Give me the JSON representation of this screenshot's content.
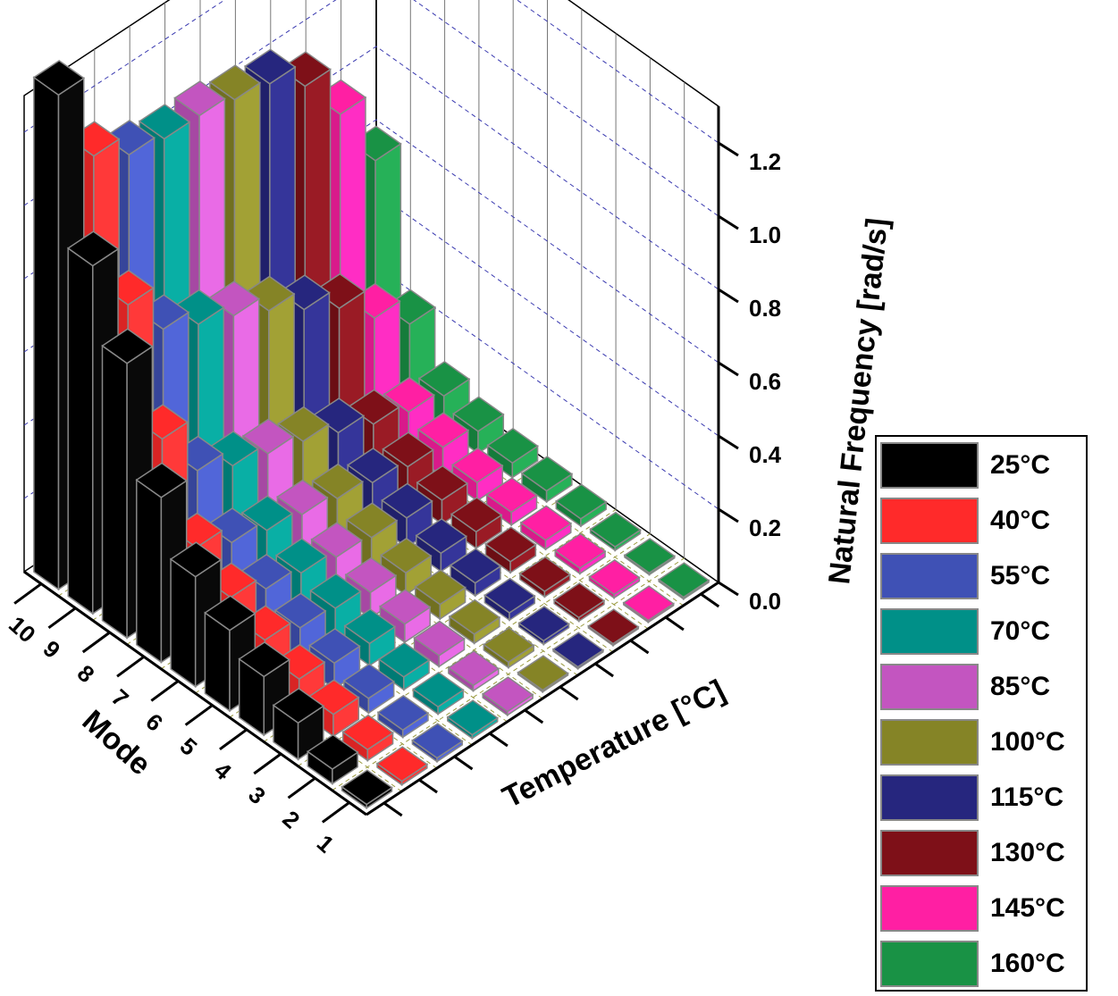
{
  "chart_data": {
    "type": "bar3d",
    "title": "",
    "xlabel": "Temperature [°C]",
    "ylabel": "Mode",
    "zlabel": "Natural Frequency [rad/s]",
    "zlim": [
      0,
      1.3
    ],
    "zticks": [
      "0.0",
      "0.2",
      "0.4",
      "0.6",
      "0.8",
      "1.0",
      "1.2"
    ],
    "modes": [
      "1",
      "2",
      "3",
      "4",
      "5",
      "6",
      "7",
      "8",
      "9",
      "10"
    ],
    "temperatures": [
      "25°C",
      "40°C",
      "55°C",
      "70°C",
      "85°C",
      "100°C",
      "115°C",
      "130°C",
      "145°C",
      "160°C"
    ],
    "colors": [
      "#000000",
      "#ff2a2a",
      "#3f51b5",
      "#009088",
      "#c355c0",
      "#858426",
      "#26267e",
      "#7e1018",
      "#ff1fa3",
      "#199245"
    ],
    "series": [
      {
        "name": "25°C",
        "values": [
          0.01,
          0.04,
          0.1,
          0.16,
          0.22,
          0.3,
          0.45,
          0.75,
          0.95,
          1.35
        ]
      },
      {
        "name": "40°C",
        "values": [
          0.01,
          0.03,
          0.06,
          0.09,
          0.13,
          0.18,
          0.25,
          0.48,
          0.78,
          1.12
        ]
      },
      {
        "name": "55°C",
        "values": [
          0.01,
          0.02,
          0.04,
          0.07,
          0.1,
          0.14,
          0.2,
          0.33,
          0.65,
          1.06
        ]
      },
      {
        "name": "70°C",
        "values": [
          0.01,
          0.02,
          0.035,
          0.06,
          0.09,
          0.12,
          0.17,
          0.28,
          0.6,
          1.04
        ]
      },
      {
        "name": "85°C",
        "values": [
          0.01,
          0.015,
          0.03,
          0.05,
          0.07,
          0.1,
          0.15,
          0.25,
          0.56,
          1.04
        ]
      },
      {
        "name": "100°C",
        "values": [
          0.005,
          0.015,
          0.025,
          0.04,
          0.06,
          0.09,
          0.13,
          0.22,
          0.51,
          1.02
        ]
      },
      {
        "name": "115°C",
        "values": [
          0.005,
          0.01,
          0.02,
          0.035,
          0.05,
          0.08,
          0.11,
          0.18,
          0.45,
          1.0
        ]
      },
      {
        "name": "130°C",
        "values": [
          0.005,
          0.01,
          0.015,
          0.03,
          0.045,
          0.065,
          0.09,
          0.14,
          0.39,
          0.93
        ]
      },
      {
        "name": "145°C",
        "values": [
          0.005,
          0.01,
          0.015,
          0.025,
          0.035,
          0.05,
          0.08,
          0.11,
          0.3,
          0.79
        ]
      },
      {
        "name": "160°C",
        "values": [
          0.005,
          0.005,
          0.01,
          0.02,
          0.03,
          0.04,
          0.06,
          0.09,
          0.22,
          0.6
        ]
      }
    ],
    "legend_position": "bottom-right"
  }
}
